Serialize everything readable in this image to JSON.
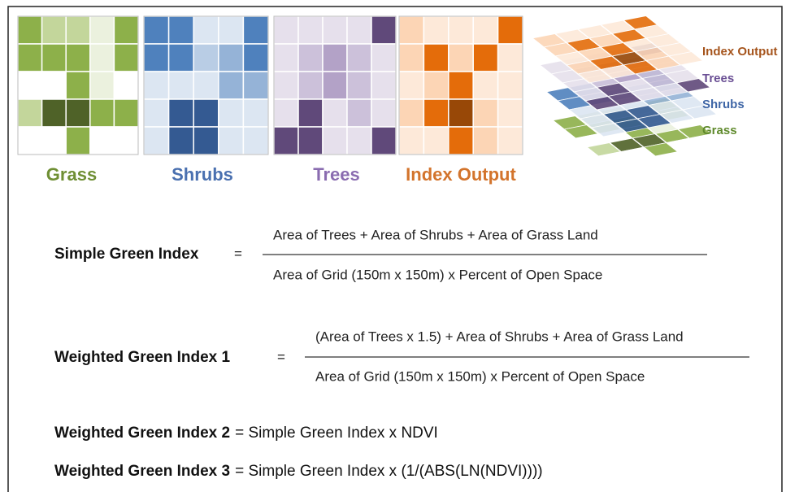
{
  "grids": [
    {
      "label": "Grass"
    },
    {
      "label": "Shrubs"
    },
    {
      "label": "Trees"
    },
    {
      "label": "Index Output"
    }
  ],
  "layers": [
    "Index Output",
    "Trees",
    "Shrubs",
    "Grass"
  ],
  "formulas": [
    {
      "name": "Simple Green Index",
      "equals": "=",
      "numerator": "Area of Trees + Area of Shrubs + Area of Grass Land",
      "denominator": "Area of Grid (150m x 150m) x Percent of Open Space"
    },
    {
      "name": "Weighted Green Index 1",
      "equals": "=",
      "numerator": "(Area of Trees x 1.5) + Area of Shrubs + Area of Grass Land",
      "denominator": "Area of Grid (150m x 150m) x Percent of Open Space"
    },
    {
      "name": "Weighted Green Index 2",
      "expression": "= Simple Green Index x NDVI"
    },
    {
      "name": "Weighted Green Index 3",
      "expression": "= Simple Green Index x (1/(ABS(LN(NDVI))))"
    }
  ]
}
